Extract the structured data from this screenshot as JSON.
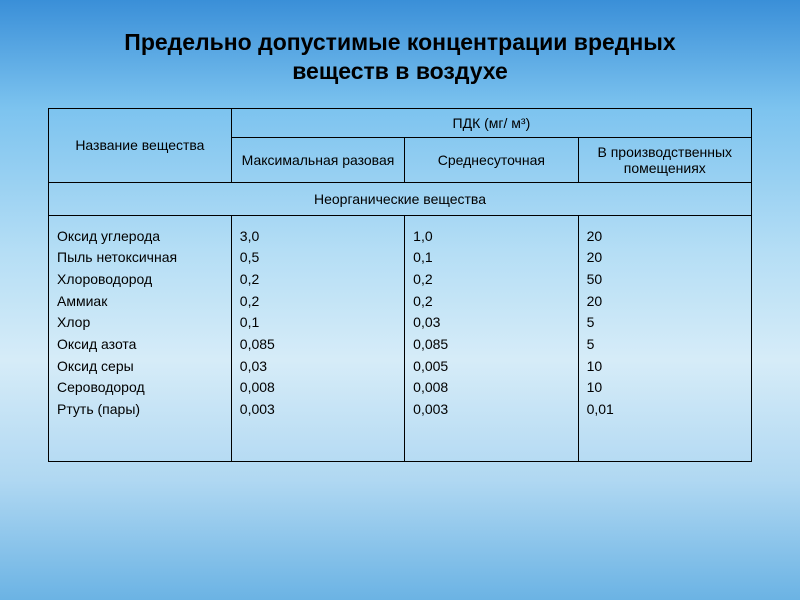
{
  "title_line1": "Предельно допустимые концентрации вредных",
  "title_line2": "веществ в воздухе",
  "colors": {
    "border": "#000000",
    "text": "#000000"
  },
  "table": {
    "type": "table",
    "font_size_pt": 14,
    "header": {
      "name": "Название вещества",
      "pdk": "ПДК (мг/ м³)",
      "col_max": "Максимальная разовая",
      "col_avg": "Среднесуточная",
      "col_ind": "В производственных помещениях"
    },
    "section_label": "Неорганические вещества",
    "rows": [
      {
        "name": "Оксид углерода",
        "max": "3,0",
        "avg": "1,0",
        "ind": "20"
      },
      {
        "name": "Пыль нетоксичная",
        "max": "0,5",
        "avg": "0,1",
        "ind": "20"
      },
      {
        "name": "Хлороводород",
        "max": "0,2",
        "avg": "0,2",
        "ind": "50"
      },
      {
        "name": "Аммиак",
        "max": "0,2",
        "avg": "0,2",
        "ind": "20"
      },
      {
        "name": "Хлор",
        "max": "0,1",
        "avg": "0,03",
        "ind": "5"
      },
      {
        "name": "Оксид азота",
        "max": "0,085",
        "avg": "0,085",
        "ind": "5"
      },
      {
        "name": "Оксид серы",
        "max": "0,03",
        "avg": "0,005",
        "ind": "10"
      },
      {
        "name": "Сероводород",
        "max": "0,008",
        "avg": "0,008",
        "ind": "10"
      },
      {
        "name": "Ртуть (пары)",
        "max": "0,003",
        "avg": "0,003",
        "ind": "0,01"
      }
    ]
  }
}
